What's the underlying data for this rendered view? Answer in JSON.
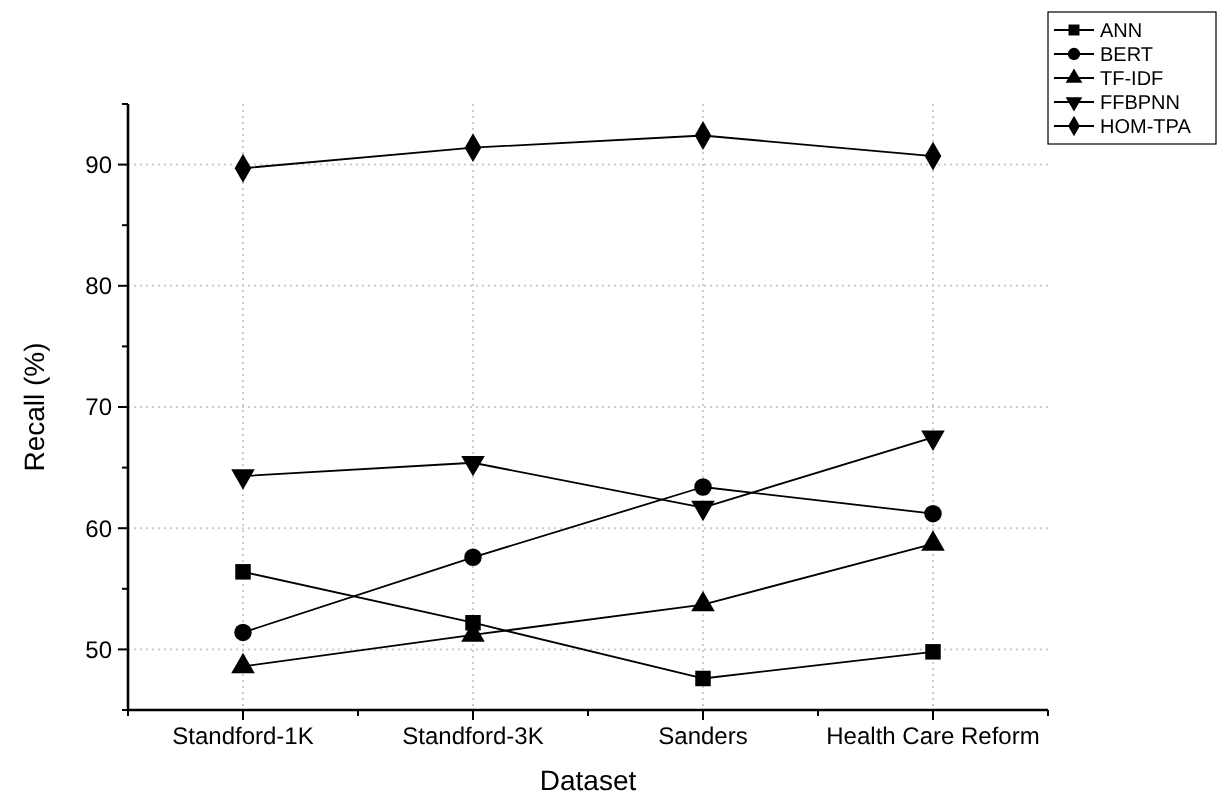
{
  "chart_data": {
    "type": "line",
    "xlabel": "Dataset",
    "ylabel": "Recall (%)",
    "categories": [
      "Standford-1K",
      "Standford-3K",
      "Sanders",
      "Health Care Reform"
    ],
    "ylim": [
      45,
      95
    ],
    "yticks": [
      50,
      60,
      70,
      80,
      90
    ],
    "grid": true,
    "legend": "top right",
    "line_style": "solid",
    "series": [
      {
        "name": "ANN",
        "color": "#000000",
        "marker": "square",
        "values": [
          56.4,
          52.2,
          47.6,
          49.8
        ]
      },
      {
        "name": "BERT",
        "color": "#000000",
        "marker": "circle",
        "values": [
          51.4,
          57.6,
          63.4,
          61.2
        ]
      },
      {
        "name": "TF-IDF",
        "color": "#000000",
        "marker": "triangle",
        "values": [
          48.6,
          51.2,
          53.7,
          58.7
        ]
      },
      {
        "name": "FFBPNN",
        "color": "#000000",
        "marker": "triangle-down",
        "values": [
          64.3,
          65.4,
          61.7,
          67.5
        ]
      },
      {
        "name": "HOM-TPA",
        "color": "#000000",
        "marker": "diamond",
        "values": [
          89.7,
          91.4,
          92.4,
          90.7
        ]
      }
    ]
  }
}
